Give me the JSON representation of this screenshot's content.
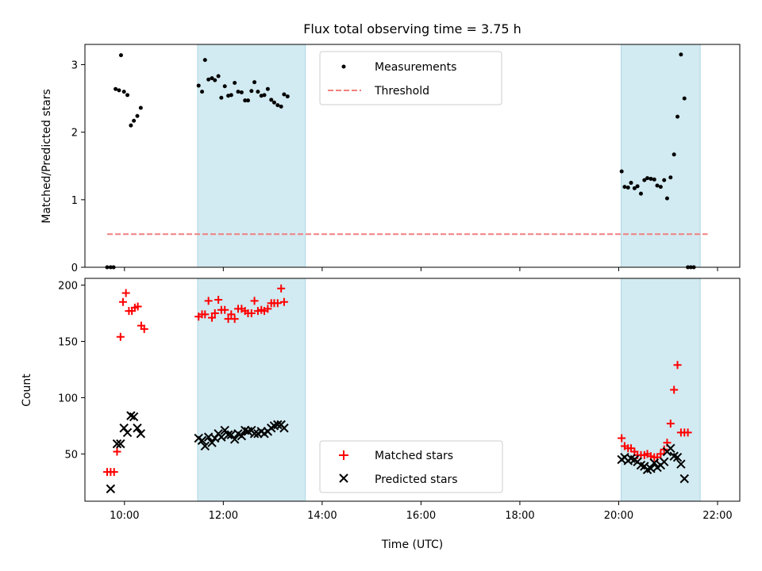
{
  "chart_data": [
    {
      "type": "scatter",
      "title": "Flux total observing time = 3.75 h",
      "xlabel": "",
      "ylabel": "Matched/Predicted stars",
      "xlim": [
        9.2,
        22.45
      ],
      "ylim": [
        0,
        3.3
      ],
      "yticks": [
        0,
        1,
        2,
        3
      ],
      "legend": {
        "position": "top-center",
        "entries": [
          "Measurements",
          "Threshold"
        ]
      },
      "observing_windows": [
        [
          11.48,
          13.66
        ],
        [
          20.05,
          21.65
        ]
      ],
      "threshold": {
        "name": "Threshold",
        "value": 0.49,
        "x_start": 9.65,
        "x_end": 21.8,
        "color": "#f08080"
      },
      "series": [
        {
          "name": "Measurements",
          "color": "#000000",
          "points": [
            [
              9.65,
              0
            ],
            [
              9.72,
              0
            ],
            [
              9.78,
              0
            ],
            [
              9.82,
              2.64
            ],
            [
              9.89,
              2.62
            ],
            [
              9.93,
              3.14
            ],
            [
              9.99,
              2.6
            ],
            [
              10.06,
              2.55
            ],
            [
              10.13,
              2.1
            ],
            [
              10.19,
              2.17
            ],
            [
              10.26,
              2.24
            ],
            [
              10.33,
              2.36
            ],
            [
              11.5,
              2.69
            ],
            [
              11.57,
              2.6
            ],
            [
              11.63,
              3.07
            ],
            [
              11.7,
              2.78
            ],
            [
              11.77,
              2.8
            ],
            [
              11.83,
              2.77
            ],
            [
              11.9,
              2.83
            ],
            [
              11.96,
              2.51
            ],
            [
              12.03,
              2.68
            ],
            [
              12.1,
              2.54
            ],
            [
              12.16,
              2.55
            ],
            [
              12.23,
              2.73
            ],
            [
              12.3,
              2.6
            ],
            [
              12.37,
              2.59
            ],
            [
              12.44,
              2.47
            ],
            [
              12.5,
              2.47
            ],
            [
              12.57,
              2.61
            ],
            [
              12.63,
              2.74
            ],
            [
              12.7,
              2.6
            ],
            [
              12.77,
              2.54
            ],
            [
              12.83,
              2.55
            ],
            [
              12.9,
              2.64
            ],
            [
              12.97,
              2.48
            ],
            [
              13.03,
              2.44
            ],
            [
              13.1,
              2.4
            ],
            [
              13.17,
              2.38
            ],
            [
              13.23,
              2.56
            ],
            [
              13.3,
              2.53
            ],
            [
              20.06,
              1.42
            ],
            [
              20.12,
              1.19
            ],
            [
              20.19,
              1.18
            ],
            [
              20.25,
              1.25
            ],
            [
              20.32,
              1.17
            ],
            [
              20.38,
              1.2
            ],
            [
              20.45,
              1.09
            ],
            [
              20.52,
              1.29
            ],
            [
              20.58,
              1.32
            ],
            [
              20.65,
              1.31
            ],
            [
              20.72,
              1.3
            ],
            [
              20.78,
              1.21
            ],
            [
              20.85,
              1.19
            ],
            [
              20.92,
              1.29
            ],
            [
              20.98,
              1.02
            ],
            [
              21.05,
              1.33
            ],
            [
              21.12,
              1.67
            ],
            [
              21.19,
              2.23
            ],
            [
              21.26,
              3.15
            ],
            [
              21.33,
              2.5
            ],
            [
              21.4,
              0
            ],
            [
              21.46,
              0
            ],
            [
              21.52,
              0
            ]
          ]
        }
      ]
    },
    {
      "type": "scatter",
      "title": "",
      "xlabel": "Time (UTC)",
      "ylabel": "Count",
      "xlim": [
        9.2,
        22.45
      ],
      "ylim": [
        8,
        206
      ],
      "yticks": [
        50,
        100,
        150,
        200
      ],
      "xticks": [
        10,
        12,
        14,
        16,
        18,
        20,
        22
      ],
      "xtick_labels": [
        "10:00",
        "12:00",
        "14:00",
        "16:00",
        "18:00",
        "20:00",
        "22:00"
      ],
      "legend": {
        "position": "bottom-center",
        "entries": [
          "Matched stars",
          "Predicted stars"
        ]
      },
      "observing_windows": [
        [
          11.48,
          13.66
        ],
        [
          20.05,
          21.65
        ]
      ],
      "series": [
        {
          "name": "Matched stars",
          "marker": "plus",
          "color": "#ff0000",
          "points": [
            [
              9.65,
              34
            ],
            [
              9.72,
              34
            ],
            [
              9.79,
              34
            ],
            [
              9.85,
              52
            ],
            [
              9.92,
              154
            ],
            [
              9.97,
              185
            ],
            [
              10.03,
              193
            ],
            [
              10.09,
              177
            ],
            [
              10.15,
              177
            ],
            [
              10.21,
              180
            ],
            [
              10.27,
              181
            ],
            [
              10.34,
              164
            ],
            [
              10.4,
              161
            ],
            [
              11.5,
              172
            ],
            [
              11.57,
              174
            ],
            [
              11.63,
              174
            ],
            [
              11.7,
              186
            ],
            [
              11.77,
              171
            ],
            [
              11.83,
              175
            ],
            [
              11.9,
              187
            ],
            [
              11.96,
              178
            ],
            [
              12.03,
              178
            ],
            [
              12.1,
              170
            ],
            [
              12.16,
              174
            ],
            [
              12.23,
              170
            ],
            [
              12.3,
              179
            ],
            [
              12.37,
              179
            ],
            [
              12.44,
              177
            ],
            [
              12.5,
              175
            ],
            [
              12.57,
              175
            ],
            [
              12.63,
              186
            ],
            [
              12.7,
              177
            ],
            [
              12.77,
              178
            ],
            [
              12.83,
              177
            ],
            [
              12.9,
              179
            ],
            [
              12.97,
              184
            ],
            [
              13.03,
              184
            ],
            [
              13.1,
              184
            ],
            [
              13.17,
              197
            ],
            [
              13.23,
              185
            ],
            [
              20.06,
              64
            ],
            [
              20.12,
              57
            ],
            [
              20.19,
              55
            ],
            [
              20.25,
              55
            ],
            [
              20.32,
              52
            ],
            [
              20.38,
              49
            ],
            [
              20.45,
              49
            ],
            [
              20.52,
              49
            ],
            [
              20.58,
              50
            ],
            [
              20.65,
              48
            ],
            [
              20.72,
              47
            ],
            [
              20.78,
              47
            ],
            [
              20.85,
              50
            ],
            [
              20.92,
              54
            ],
            [
              20.98,
              60
            ],
            [
              21.05,
              77
            ],
            [
              21.12,
              107
            ],
            [
              21.19,
              129
            ],
            [
              21.26,
              69
            ],
            [
              21.33,
              69
            ],
            [
              21.4,
              69
            ]
          ]
        },
        {
          "name": "Predicted stars",
          "marker": "x",
          "color": "#000000",
          "points": [
            [
              9.72,
              19
            ],
            [
              9.85,
              59
            ],
            [
              9.92,
              59
            ],
            [
              9.99,
              73
            ],
            [
              10.06,
              69
            ],
            [
              10.13,
              84
            ],
            [
              10.19,
              83
            ],
            [
              10.26,
              73
            ],
            [
              10.33,
              68
            ],
            [
              11.5,
              64
            ],
            [
              11.57,
              62
            ],
            [
              11.63,
              57
            ],
            [
              11.7,
              65
            ],
            [
              11.77,
              60
            ],
            [
              11.83,
              64
            ],
            [
              11.9,
              68
            ],
            [
              11.96,
              65
            ],
            [
              12.03,
              71
            ],
            [
              12.1,
              67
            ],
            [
              12.16,
              67
            ],
            [
              12.23,
              63
            ],
            [
              12.3,
              68
            ],
            [
              12.37,
              66
            ],
            [
              12.44,
              71
            ],
            [
              12.5,
              70
            ],
            [
              12.57,
              71
            ],
            [
              12.63,
              68
            ],
            [
              12.7,
              68
            ],
            [
              12.77,
              70
            ],
            [
              12.83,
              68
            ],
            [
              12.9,
              70
            ],
            [
              12.97,
              73
            ],
            [
              13.03,
              75
            ],
            [
              13.1,
              76
            ],
            [
              13.17,
              76
            ],
            [
              13.23,
              73
            ],
            [
              20.06,
              45
            ],
            [
              20.12,
              47
            ],
            [
              20.19,
              44
            ],
            [
              20.25,
              46
            ],
            [
              20.32,
              45
            ],
            [
              20.38,
              43
            ],
            [
              20.45,
              40
            ],
            [
              20.52,
              39
            ],
            [
              20.58,
              36
            ],
            [
              20.65,
              37
            ],
            [
              20.72,
              42
            ],
            [
              20.78,
              38
            ],
            [
              20.85,
              40
            ],
            [
              20.92,
              43
            ],
            [
              20.98,
              52
            ],
            [
              21.05,
              55
            ],
            [
              21.12,
              48
            ],
            [
              21.19,
              47
            ],
            [
              21.26,
              41
            ],
            [
              21.33,
              28
            ]
          ]
        }
      ]
    }
  ],
  "colors": {
    "window_fill": "#add8e6",
    "axes": "#000000"
  }
}
